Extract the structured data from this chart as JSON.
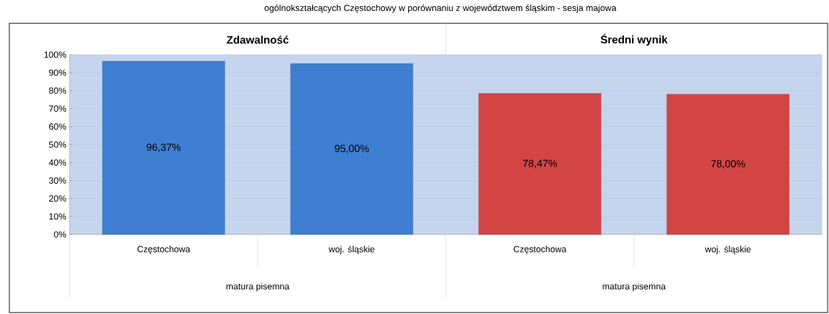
{
  "chart_data": {
    "type": "bar",
    "title": "ogólnokształcących Częstochowy w porównaniu z województwem śląskim - sesja majowa",
    "categories": [
      "Częstochowa",
      "woj. śląskie",
      "Częstochowa",
      "woj. śląskie"
    ],
    "values": [
      96.37,
      95.0,
      78.47,
      78.0
    ],
    "colors": [
      "#3f7ed0",
      "#3f7ed0",
      "#d34545",
      "#d34545"
    ],
    "value_labels": [
      "96,37%",
      "95,00%",
      "78,47%",
      "78,00%"
    ],
    "ylim": [
      0,
      100
    ],
    "yticks": [
      {
        "value": 0,
        "label": "0%"
      },
      {
        "value": 10,
        "label": "10%"
      },
      {
        "value": 20,
        "label": "20%"
      },
      {
        "value": 30,
        "label": "30%"
      },
      {
        "value": 40,
        "label": "40%"
      },
      {
        "value": 50,
        "label": "50%"
      },
      {
        "value": 60,
        "label": "60%"
      },
      {
        "value": 70,
        "label": "70%"
      },
      {
        "value": 80,
        "label": "80%"
      },
      {
        "value": 90,
        "label": "90%"
      },
      {
        "value": 100,
        "label": "100%"
      }
    ],
    "grid": "y",
    "annotations": [
      "Zdawalność",
      "Średni  wynik",
      "matura pisemna",
      "matura pisemna"
    ]
  }
}
